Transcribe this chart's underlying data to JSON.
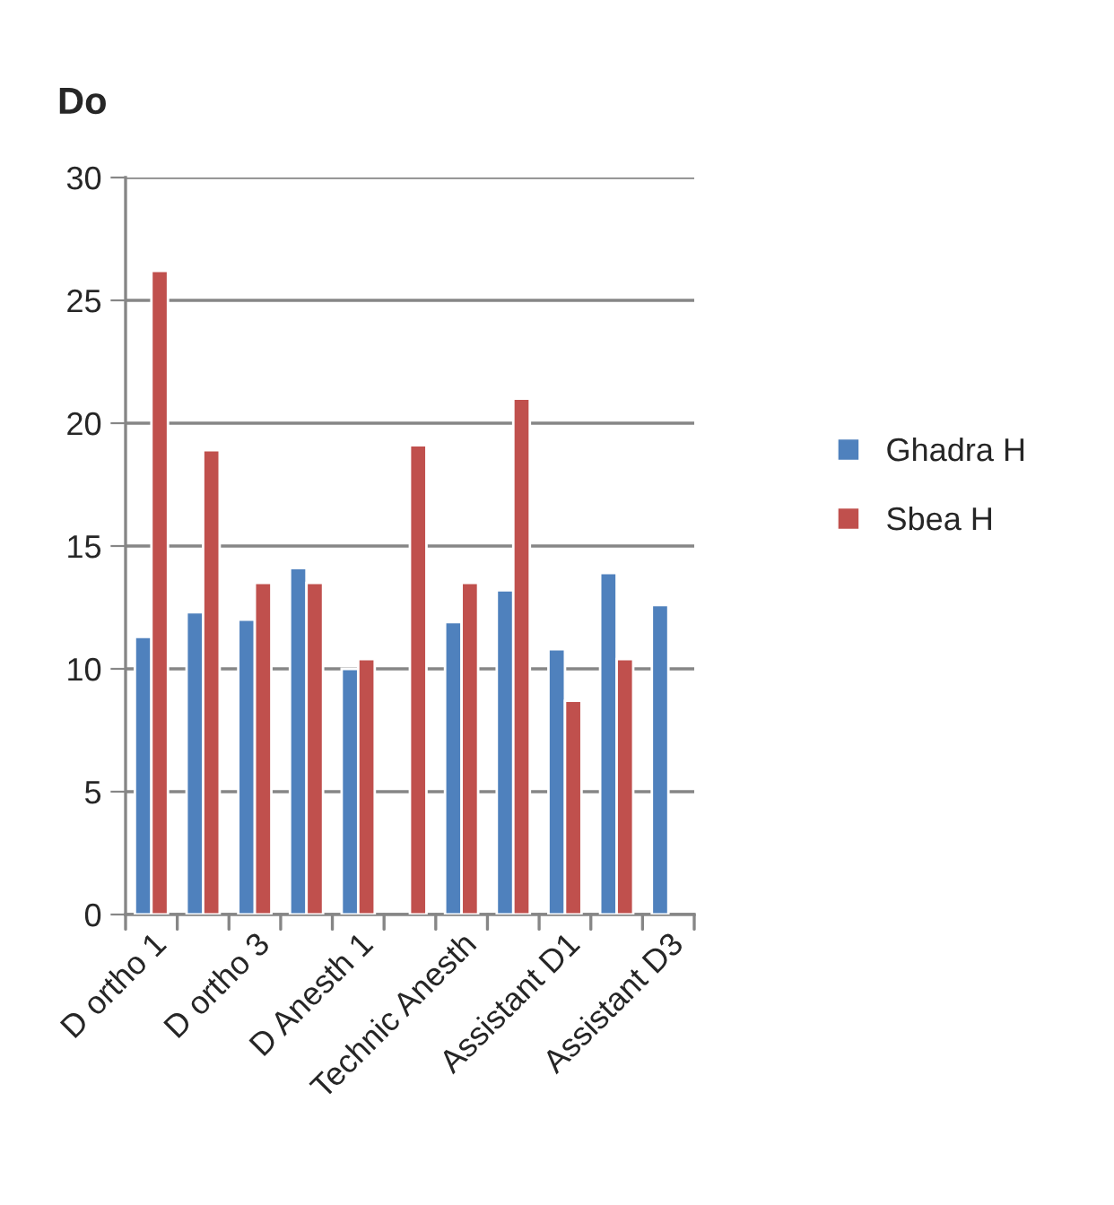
{
  "chart_data": {
    "type": "bar",
    "title": "Do",
    "categories": [
      "D ortho 1",
      null,
      "D ortho 3",
      null,
      "D Anesth 1",
      null,
      "Technic Anesth",
      null,
      "Assistant D1",
      null,
      "Assistant D3"
    ],
    "series": [
      {
        "name": "Ghadra H",
        "color": "#4f81bd",
        "values": [
          11.3,
          12.3,
          12.0,
          14.1,
          10.0,
          null,
          11.9,
          13.2,
          10.8,
          13.9,
          12.6
        ]
      },
      {
        "name": "Sbea H",
        "color": "#c0504d",
        "values": [
          26.2,
          18.9,
          13.5,
          13.5,
          10.4,
          19.1,
          13.5,
          21.0,
          8.7,
          10.4,
          null
        ]
      }
    ],
    "ylim": [
      0,
      30
    ],
    "yticks": [
      0,
      5,
      10,
      15,
      20,
      25,
      30
    ],
    "grid": "y",
    "legend": "right"
  }
}
